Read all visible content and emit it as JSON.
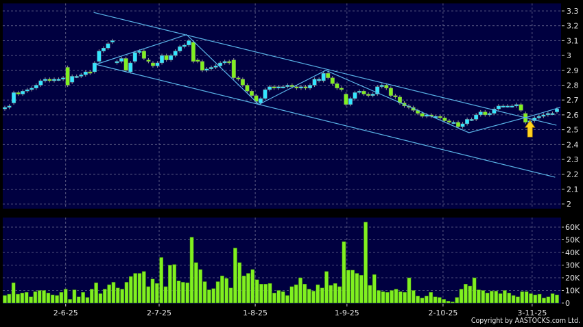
{
  "copyright": "Copyright by AASTOCKS.com Ltd.",
  "colors": {
    "background": "#000040",
    "grid": "#6c6c90",
    "up": "#33e6ff",
    "down": "#80f020",
    "volume": "#80f020",
    "trendline": "#5ab4e8",
    "arrow": "#ffd21e"
  },
  "chart_data": [
    {
      "type": "candlestick",
      "ylim": [
        2.0,
        3.3
      ],
      "y_ticks": [
        "2",
        "2.1",
        "2.2",
        "2.3",
        "2.4",
        "2.5",
        "2.6",
        "2.7",
        "2.8",
        "2.9",
        "3",
        "3.1",
        "3.2",
        "3.3"
      ],
      "grid": true,
      "open": [
        2.64,
        2.65,
        2.68,
        2.75,
        2.74,
        2.76,
        2.77,
        2.78,
        2.8,
        2.83,
        2.84,
        2.83,
        2.84,
        2.84,
        2.92,
        2.82,
        2.86,
        2.86,
        2.87,
        2.89,
        2.89,
        2.96,
        3.03,
        3.05,
        3.09,
        2.95,
        2.96,
        2.98,
        2.89,
        2.96,
        3.02,
        3.03,
        2.97,
        2.95,
        2.93,
        2.95,
        3.0,
        2.97,
        3.0,
        3.03,
        3.06,
        3.07,
        3.09,
        2.97,
        2.96,
        2.9,
        2.91,
        2.92,
        2.93,
        2.95,
        2.96,
        2.97,
        2.85,
        2.84,
        2.8,
        2.76,
        2.73,
        2.68,
        2.71,
        2.77,
        2.79,
        2.78,
        2.79,
        2.79,
        2.8,
        2.79,
        2.78,
        2.79,
        2.78,
        2.8,
        2.83,
        2.83,
        2.88,
        2.85,
        2.81,
        2.78,
        2.74,
        2.67,
        2.71,
        2.75,
        2.76,
        2.74,
        2.73,
        2.74,
        2.79,
        2.8,
        2.78,
        2.73,
        2.72,
        2.68,
        2.66,
        2.65,
        2.63,
        2.61,
        2.59,
        2.6,
        2.59,
        2.59,
        2.58,
        2.56,
        2.55,
        2.55,
        2.52,
        2.54,
        2.57,
        2.57,
        2.6,
        2.62,
        2.6,
        2.61,
        2.64,
        2.66,
        2.66,
        2.66,
        2.66,
        2.67,
        2.61,
        2.55,
        2.56,
        2.58,
        2.59,
        2.6,
        2.61,
        2.62
      ],
      "close": [
        2.65,
        2.66,
        2.75,
        2.74,
        2.76,
        2.77,
        2.78,
        2.8,
        2.83,
        2.84,
        2.83,
        2.84,
        2.84,
        2.85,
        2.8,
        2.86,
        2.86,
        2.87,
        2.89,
        2.88,
        2.95,
        3.03,
        3.05,
        3.08,
        3.1,
        2.96,
        2.98,
        2.9,
        2.95,
        3.02,
        3.03,
        2.98,
        2.96,
        2.93,
        2.95,
        3.0,
        2.97,
        3.0,
        3.03,
        3.06,
        3.07,
        3.1,
        2.96,
        2.96,
        2.9,
        2.91,
        2.92,
        2.93,
        2.95,
        2.96,
        2.95,
        2.85,
        2.84,
        2.8,
        2.76,
        2.73,
        2.69,
        2.71,
        2.77,
        2.79,
        2.78,
        2.79,
        2.79,
        2.8,
        2.79,
        2.78,
        2.79,
        2.78,
        2.8,
        2.84,
        2.84,
        2.88,
        2.85,
        2.81,
        2.78,
        2.77,
        2.67,
        2.71,
        2.75,
        2.76,
        2.74,
        2.73,
        2.74,
        2.79,
        2.8,
        2.78,
        2.73,
        2.72,
        2.68,
        2.66,
        2.65,
        2.63,
        2.61,
        2.59,
        2.6,
        2.59,
        2.59,
        2.58,
        2.56,
        2.55,
        2.55,
        2.52,
        2.54,
        2.57,
        2.57,
        2.6,
        2.62,
        2.6,
        2.61,
        2.64,
        2.66,
        2.66,
        2.66,
        2.66,
        2.67,
        2.63,
        2.55,
        2.56,
        2.58,
        2.59,
        2.6,
        2.61,
        2.61,
        2.64
      ],
      "trendlines": [
        {
          "points": [
            [
              19.8,
              3.29
            ],
            [
              122.9,
              2.53
            ]
          ]
        },
        {
          "points": [
            [
              20.3,
              2.94
            ],
            [
              122.6,
              2.18
            ]
          ]
        },
        {
          "points": [
            [
              20.3,
              2.94
            ],
            [
              40.5,
              3.14
            ],
            [
              56.6,
              2.67
            ],
            [
              71.5,
              2.9
            ],
            [
              103.4,
              2.48
            ],
            [
              117,
              2.59
            ],
            [
              123.7,
              2.65
            ]
          ]
        }
      ],
      "annotation": {
        "type": "up-arrow",
        "index": 117,
        "price": 2.58
      }
    },
    {
      "type": "bar",
      "ylim": [
        0,
        66000
      ],
      "y_ticks": [
        "0",
        "10K",
        "20K",
        "30K",
        "40K",
        "50K",
        "60K"
      ],
      "grid": true,
      "x_ticks": [
        {
          "label": "2-6-25",
          "index": 14
        },
        {
          "label": "2-7-25",
          "index": 35.5
        },
        {
          "label": "1-8-25",
          "index": 57.6
        },
        {
          "label": "1-9-25",
          "index": 78.7
        },
        {
          "label": "2-10-25",
          "index": 100.8
        },
        {
          "label": "3-11-25",
          "index": 121.3
        }
      ],
      "values_k": [
        6,
        7,
        16,
        7,
        8,
        8.5,
        5,
        9,
        10,
        10,
        8,
        6.5,
        6,
        8.5,
        11,
        3,
        10.5,
        5,
        8.5,
        4.5,
        11,
        16,
        7.5,
        11,
        14.5,
        16.5,
        12,
        11,
        16.5,
        21,
        23.5,
        23.5,
        25,
        13,
        19,
        15.5,
        36,
        13,
        30,
        30.5,
        17.5,
        16.5,
        16,
        52,
        32,
        26.5,
        17,
        10.5,
        11.5,
        17,
        21.5,
        19.5,
        12,
        43.5,
        32,
        21.5,
        23.5,
        26.5,
        18.5,
        15,
        15,
        15.5,
        8,
        10,
        9,
        6,
        13,
        14.5,
        20,
        15,
        11,
        9.5,
        14.5,
        12,
        25,
        14,
        15.5,
        13,
        48.5,
        26,
        26,
        23.5,
        22,
        64,
        14,
        22.5,
        10,
        9,
        8.5,
        10,
        11,
        9,
        8.5,
        20,
        10,
        5.5,
        4,
        5.5,
        8.5,
        5,
        4.5,
        3,
        1.5,
        1,
        4.5,
        11,
        15,
        13.5,
        20,
        10.5,
        10,
        8,
        9.5,
        9.5,
        7.5,
        10,
        8,
        6,
        5,
        9,
        9,
        7.5,
        6.5,
        7,
        4,
        5,
        7.5,
        6.5
      ]
    }
  ]
}
